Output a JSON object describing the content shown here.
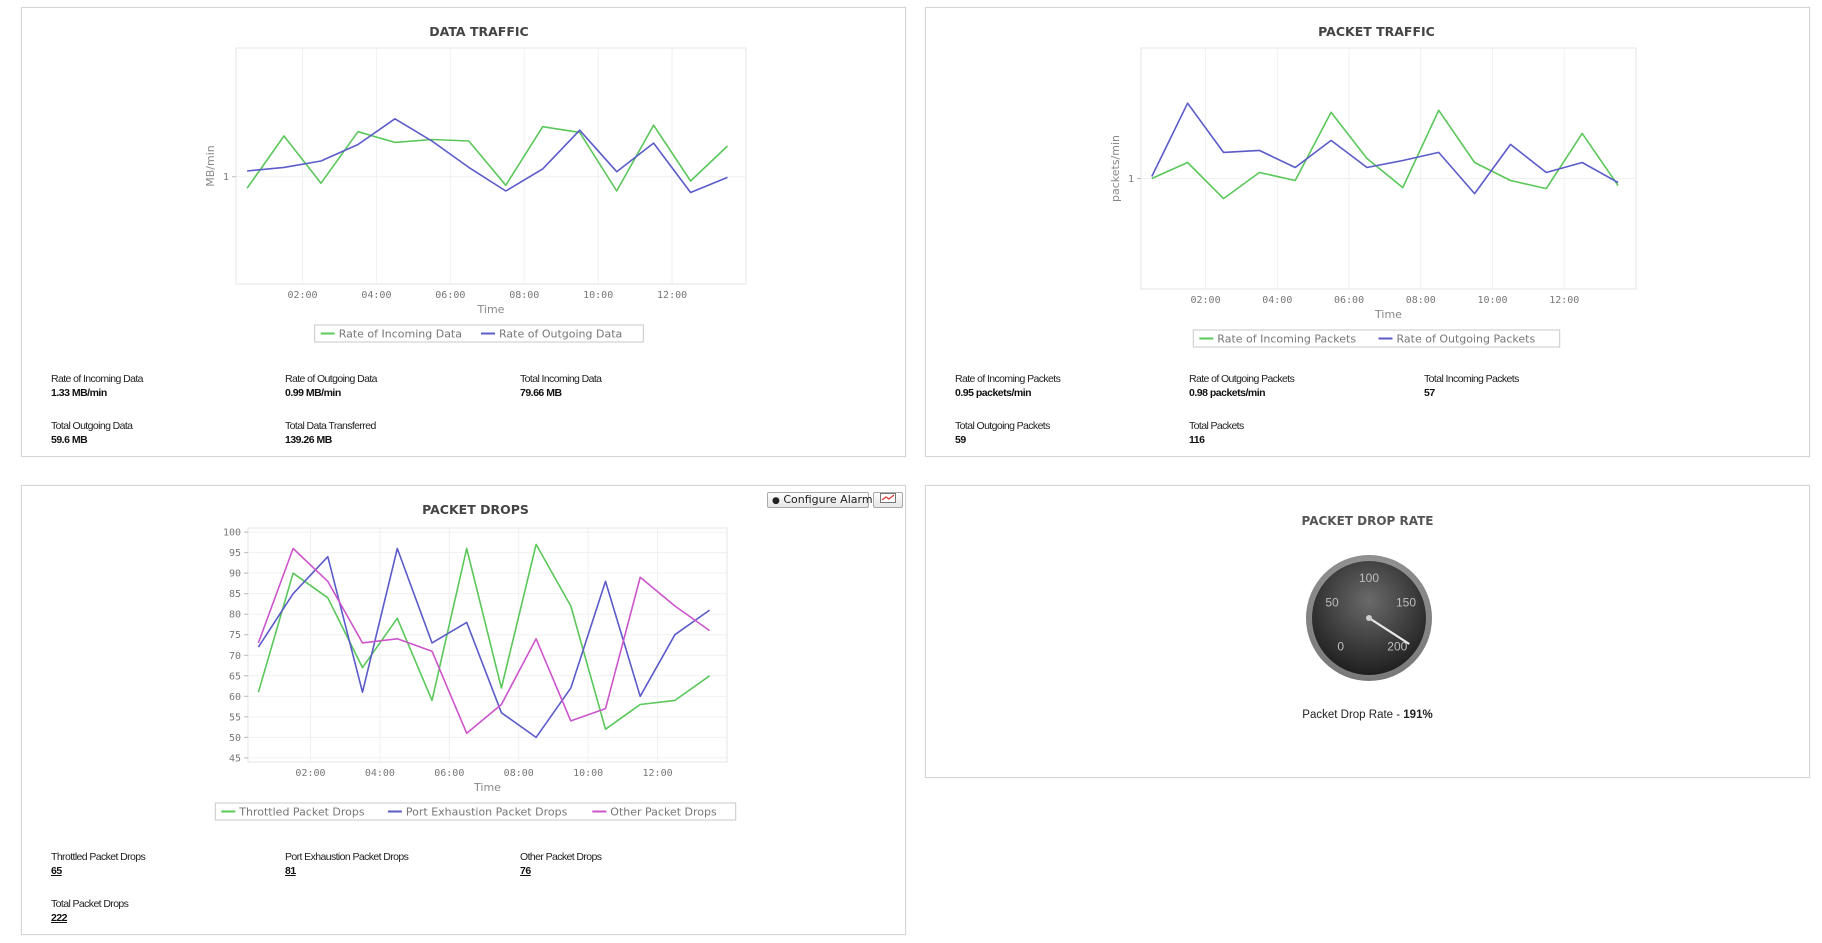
{
  "chart_data": [
    {
      "type": "line",
      "title": "DATA TRAFFIC",
      "xlabel": "Time",
      "ylabel": "MB/min",
      "x_ticks": [
        "02:00",
        "04:00",
        "06:00",
        "08:00",
        "10:00",
        "12:00"
      ],
      "x": [
        0.5,
        1.5,
        2.5,
        3.5,
        4.5,
        5.5,
        6.5,
        7.5,
        8.5,
        9.5,
        10.5,
        11.5,
        12.5,
        13.5
      ],
      "xlim": [
        0.2,
        14
      ],
      "ylim": [
        0.85,
        1.18
      ],
      "y_ticks": [
        {
          "value": 1,
          "label": "1"
        }
      ],
      "legend": "bottom-center",
      "series": [
        {
          "name": "Rate of Incoming Data",
          "color": "#5ac75a",
          "values": [
            0.984,
            1.057,
            0.991,
            1.063,
            1.048,
            1.052,
            1.05,
            0.988,
            1.07,
            1.062,
            0.98,
            1.072,
            0.994,
            1.043
          ]
        },
        {
          "name": "Rate of Outgoing Data",
          "color": "#5b5bc9",
          "values": [
            1.008,
            1.013,
            1.022,
            1.045,
            1.081,
            1.05,
            1.013,
            0.98,
            1.011,
            1.065,
            1.007,
            1.047,
            0.978,
            0.999
          ]
        }
      ]
    },
    {
      "type": "line",
      "title": "PACKET TRAFFIC",
      "xlabel": "Time",
      "ylabel": "packets/min",
      "x_ticks": [
        "02:00",
        "04:00",
        "06:00",
        "08:00",
        "10:00",
        "12:00"
      ],
      "x": [
        0.5,
        1.5,
        2.5,
        3.5,
        4.5,
        5.5,
        6.5,
        7.5,
        8.5,
        9.5,
        10.5,
        11.5,
        12.5,
        13.5
      ],
      "xlim": [
        0.2,
        14
      ],
      "ylim": [
        0.89,
        1.13
      ],
      "y_ticks": [
        {
          "value": 1,
          "label": "1"
        }
      ],
      "legend": "bottom-center",
      "series": [
        {
          "name": "Rate of Incoming Packets",
          "color": "#5ac75a",
          "values": [
            1.0,
            1.016,
            0.98,
            1.006,
            0.998,
            1.066,
            1.02,
            0.991,
            1.068,
            1.016,
            0.998,
            0.99,
            1.045,
            0.993
          ]
        },
        {
          "name": "Rate of Outgoing Packets",
          "color": "#5b5bc9",
          "values": [
            1.002,
            1.075,
            1.026,
            1.028,
            1.011,
            1.038,
            1.011,
            1.018,
            1.026,
            0.985,
            1.034,
            1.006,
            1.016,
            0.996
          ]
        }
      ]
    },
    {
      "type": "line",
      "title": "PACKET DROPS",
      "xlabel": "Time",
      "ylabel": "",
      "x_ticks": [
        "02:00",
        "04:00",
        "06:00",
        "08:00",
        "10:00",
        "12:00"
      ],
      "x": [
        0.5,
        1.5,
        2.5,
        3.5,
        4.5,
        5.5,
        6.5,
        7.5,
        8.5,
        9.5,
        10.5,
        11.5,
        12.5,
        13.5
      ],
      "xlim": [
        0.2,
        14
      ],
      "ylim": [
        44,
        101
      ],
      "y_ticks": [
        45,
        50,
        55,
        60,
        65,
        70,
        75,
        80,
        85,
        90,
        95,
        100
      ],
      "legend": "bottom-center",
      "series": [
        {
          "name": "Throttled Packet Drops",
          "color": "#5ac75a",
          "values": [
            61,
            90,
            84,
            67,
            79,
            59,
            96,
            62,
            97,
            82,
            52,
            58,
            59,
            65
          ]
        },
        {
          "name": "Port Exhaustion Packet Drops",
          "color": "#5b5bc9",
          "values": [
            72,
            85,
            94,
            61,
            96,
            73,
            78,
            56,
            50,
            62,
            88,
            60,
            75,
            81
          ]
        },
        {
          "name": "Other Packet Drops",
          "color": "#cc55cc",
          "values": [
            73,
            96,
            88,
            73,
            74,
            71,
            51,
            58,
            74,
            54,
            57,
            89,
            82,
            76
          ]
        }
      ]
    }
  ],
  "data_traffic": {
    "stats": [
      {
        "label": "Rate of Incoming Data",
        "value": "1.33 MB/min"
      },
      {
        "label": "Rate of Outgoing Data",
        "value": "0.99 MB/min"
      },
      {
        "label": "Total Incoming Data",
        "value": "79.66 MB"
      },
      {
        "label": "Total Outgoing Data",
        "value": "59.6 MB"
      },
      {
        "label": "Total Data Transferred",
        "value": "139.26 MB"
      }
    ]
  },
  "packet_traffic": {
    "stats": [
      {
        "label": "Rate of Incoming Packets",
        "value": "0.95 packets/min"
      },
      {
        "label": "Rate of Outgoing Packets",
        "value": "0.98 packets/min"
      },
      {
        "label": "Total Incoming Packets",
        "value": "57"
      },
      {
        "label": "Total Outgoing Packets",
        "value": "59"
      },
      {
        "label": "Total Packets",
        "value": "116"
      }
    ]
  },
  "packet_drops": {
    "configure_alarms_label": "Configure Alarms",
    "export_icon": "chart-export-icon",
    "stats": [
      {
        "label": "Throttled Packet Drops",
        "value": "65"
      },
      {
        "label": "Port Exhaustion Packet Drops",
        "value": "81"
      },
      {
        "label": "Other Packet Drops",
        "value": "76"
      },
      {
        "label": "Total Packet Drops",
        "value": "222"
      }
    ]
  },
  "packet_drop_rate": {
    "title": "PACKET DROP RATE",
    "gauge": {
      "min": 0,
      "max": 200,
      "value": 191,
      "tick_labels": [
        "0",
        "50",
        "100",
        "150",
        "200"
      ]
    },
    "caption_label": "Packet Drop Rate - ",
    "caption_value": "191%"
  }
}
